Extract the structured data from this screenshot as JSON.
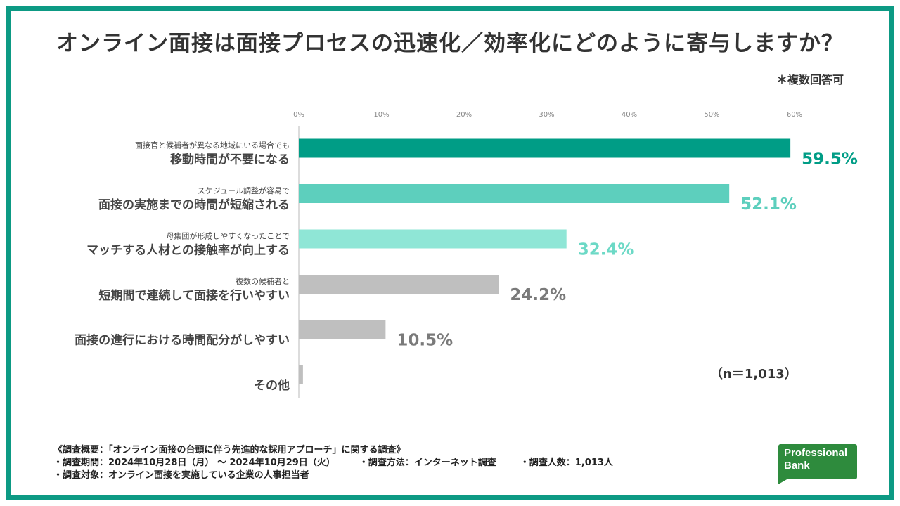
{
  "title": "オンライン面接は面接プロセスの迅速化／効率化にどのように寄与しますか？",
  "note": "＊複数回答可",
  "n_label": "（n＝1,013）",
  "colors": {
    "frame": "#0d9a84",
    "bar_1": "#009d86",
    "bar_2": "#5dcfbd",
    "bar_3": "#8fe6d6",
    "bar_grey": "#bfbfbf"
  },
  "chart_data": {
    "type": "bar",
    "orientation": "horizontal",
    "xlim": [
      0,
      60
    ],
    "ticks": [
      "0%",
      "10%",
      "20%",
      "30%",
      "40%",
      "50%",
      "60%"
    ],
    "tick_values": [
      0,
      10,
      20,
      30,
      40,
      50,
      60
    ],
    "categories": [
      {
        "sub": "面接官と候補者が異なる地域にいる場合でも",
        "main": "移動時間が不要になる",
        "value": 59.5,
        "label": "59.5%",
        "color": "#009d86",
        "label_color": "#009d86"
      },
      {
        "sub": "スケジュール調整が容易で",
        "main": "面接の実施までの時間が短縮される",
        "value": 52.1,
        "label": "52.1%",
        "color": "#5dcfbd",
        "label_color": "#5dcfbd"
      },
      {
        "sub": "母集団が形成しやすくなったことで",
        "main": "マッチする人材との接触率が向上する",
        "value": 32.4,
        "label": "32.4%",
        "color": "#8fe6d6",
        "label_color": "#6cd9c6"
      },
      {
        "sub": "複数の候補者と",
        "main": "短期間で連続して面接を行いやすい",
        "value": 24.2,
        "label": "24.2%",
        "color": "#bfbfbf",
        "label_color": "#7a7a7a"
      },
      {
        "sub": "",
        "main": "面接の進行における時間配分がしやすい",
        "value": 10.5,
        "label": "10.5%",
        "color": "#bfbfbf",
        "label_color": "#7a7a7a"
      },
      {
        "sub": "",
        "main": "その他",
        "value": 0.5,
        "label": "",
        "color": "#bfbfbf",
        "label_color": "#7a7a7a"
      }
    ]
  },
  "footer": {
    "line1": "《調査概要：「オンライン面接の台頭に伴う先進的な採用アプローチ」に関する調査》",
    "period": "・調査期間：2024年10月28日（月） 〜 2024年10月29日（火）",
    "method": "・調査方法：インターネット調査",
    "count": "・調査人数：1,013人",
    "target": "・調査対象：オンライン面接を実施している企業の人事担当者"
  },
  "logo": {
    "line1": "Professional",
    "line2": "Bank"
  }
}
